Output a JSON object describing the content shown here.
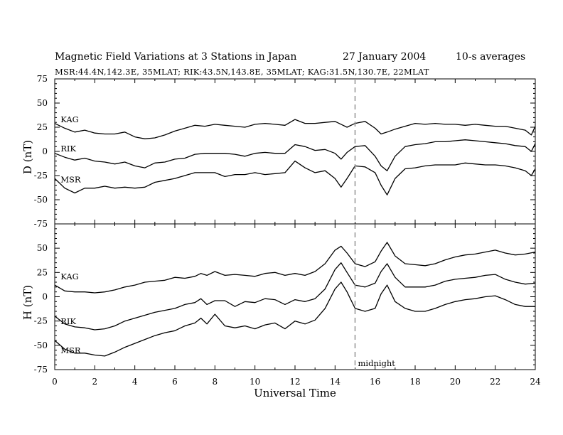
{
  "header": {
    "title": "Magnetic Field Variations at 3 Stations in Japan",
    "date": "27 January 2004",
    "averaging": "10-s averages",
    "stations_line": "MSR:44.4N,142.3E, 35MLAT;  RIK:43.5N,143.8E, 35MLAT;  KAG:31.5N,130.7E, 22MLAT"
  },
  "chart_data": [
    {
      "type": "line",
      "panel": "D",
      "ylabel": "D (nT)",
      "xlim": [
        0,
        24
      ],
      "ylim": [
        -75,
        75
      ],
      "yticks": [
        75,
        50,
        25,
        0,
        -25,
        -50,
        -75
      ],
      "series": [
        {
          "name": "KAG",
          "x": [
            0,
            0.5,
            1,
            1.5,
            2,
            2.5,
            3,
            3.5,
            4,
            4.5,
            5,
            5.5,
            6,
            6.5,
            7,
            7.5,
            8,
            8.5,
            9,
            9.5,
            10,
            10.5,
            11,
            11.5,
            12,
            12.5,
            13,
            13.5,
            14,
            14.3,
            14.6,
            15,
            15.5,
            16,
            16.3,
            16.6,
            17,
            17.5,
            18,
            18.5,
            19,
            19.5,
            20,
            20.5,
            21,
            21.5,
            22,
            22.5,
            23,
            23.5,
            23.8,
            24
          ],
          "y": [
            29,
            24,
            20,
            22,
            19,
            18,
            18,
            20,
            15,
            13,
            14,
            17,
            21,
            24,
            27,
            26,
            28,
            27,
            26,
            25,
            28,
            29,
            28,
            27,
            33,
            29,
            29,
            30,
            31,
            28,
            25,
            29,
            31,
            24,
            18,
            20,
            23,
            26,
            29,
            28,
            29,
            28,
            28,
            27,
            28,
            27,
            26,
            26,
            24,
            22,
            17,
            26
          ]
        },
        {
          "name": "RIK",
          "x": [
            0,
            0.5,
            1,
            1.5,
            2,
            2.5,
            3,
            3.5,
            4,
            4.5,
            5,
            5.5,
            6,
            6.5,
            7,
            7.5,
            8,
            8.5,
            9,
            9.5,
            10,
            10.5,
            11,
            11.5,
            12,
            12.5,
            13,
            13.5,
            14,
            14.3,
            14.6,
            15,
            15.5,
            16,
            16.3,
            16.6,
            17,
            17.5,
            18,
            18.5,
            19,
            19.5,
            20,
            20.5,
            21,
            21.5,
            22,
            22.5,
            23,
            23.5,
            23.8,
            24
          ],
          "y": [
            -2,
            -6,
            -9,
            -7,
            -10,
            -11,
            -13,
            -11,
            -15,
            -17,
            -12,
            -11,
            -8,
            -7,
            -3,
            -2,
            -2,
            -2,
            -3,
            -5,
            -2,
            -1,
            -2,
            -2,
            7,
            5,
            1,
            2,
            -2,
            -8,
            -1,
            5,
            6,
            -5,
            -15,
            -20,
            -5,
            5,
            7,
            8,
            10,
            10,
            11,
            12,
            11,
            10,
            9,
            8,
            6,
            5,
            0,
            8
          ]
        },
        {
          "name": "MSR",
          "x": [
            0,
            0.5,
            1,
            1.5,
            2,
            2.5,
            3,
            3.5,
            4,
            4.5,
            5,
            5.5,
            6,
            6.5,
            7,
            7.5,
            8,
            8.5,
            9,
            9.5,
            10,
            10.5,
            11,
            11.5,
            12,
            12.5,
            13,
            13.5,
            14,
            14.3,
            14.6,
            15,
            15.5,
            16,
            16.3,
            16.6,
            17,
            17.5,
            18,
            18.5,
            19,
            19.5,
            20,
            20.5,
            21,
            21.5,
            22,
            22.5,
            23,
            23.5,
            23.8,
            24
          ],
          "y": [
            -28,
            -38,
            -43,
            -38,
            -38,
            -36,
            -38,
            -37,
            -38,
            -37,
            -32,
            -30,
            -28,
            -25,
            -22,
            -22,
            -22,
            -26,
            -24,
            -24,
            -22,
            -24,
            -23,
            -22,
            -10,
            -17,
            -22,
            -20,
            -28,
            -37,
            -28,
            -15,
            -16,
            -22,
            -35,
            -45,
            -28,
            -18,
            -17,
            -15,
            -14,
            -14,
            -14,
            -12,
            -13,
            -14,
            -14,
            -15,
            -17,
            -20,
            -25,
            -18
          ]
        }
      ],
      "series_labels": [
        {
          "name": "KAG",
          "x": 0.15,
          "y": 30
        },
        {
          "name": "RIK",
          "x": 0.15,
          "y": 0
        },
        {
          "name": "MSR",
          "x": 0.15,
          "y": -32
        }
      ]
    },
    {
      "type": "line",
      "panel": "H",
      "ylabel": "H (nT)",
      "xlabel": "Universal Time",
      "xlim": [
        0,
        24
      ],
      "ylim": [
        -75,
        75
      ],
      "xticks": [
        0,
        2,
        4,
        6,
        8,
        10,
        12,
        14,
        16,
        18,
        20,
        22,
        24
      ],
      "yticks": [
        50,
        25,
        0,
        -25,
        -50,
        -75
      ],
      "series": [
        {
          "name": "KAG",
          "x": [
            0,
            0.5,
            1,
            1.5,
            2,
            2.5,
            3,
            3.5,
            4,
            4.5,
            5,
            5.5,
            6,
            6.5,
            7,
            7.3,
            7.6,
            8,
            8.5,
            9,
            9.5,
            10,
            10.5,
            11,
            11.5,
            12,
            12.5,
            13,
            13.5,
            14,
            14.3,
            14.6,
            15,
            15.5,
            16,
            16.3,
            16.6,
            17,
            17.5,
            18,
            18.5,
            19,
            19.5,
            20,
            20.5,
            21,
            21.5,
            22,
            22.5,
            23,
            23.5,
            24
          ],
          "y": [
            12,
            6,
            5,
            5,
            4,
            5,
            7,
            10,
            12,
            15,
            16,
            17,
            20,
            19,
            21,
            24,
            22,
            26,
            22,
            23,
            22,
            21,
            24,
            25,
            22,
            24,
            22,
            26,
            34,
            48,
            52,
            45,
            34,
            31,
            36,
            47,
            56,
            42,
            34,
            33,
            32,
            34,
            38,
            41,
            43,
            44,
            46,
            48,
            45,
            43,
            44,
            46
          ]
        },
        {
          "name": "RIK",
          "x": [
            0,
            0.5,
            1,
            1.5,
            2,
            2.5,
            3,
            3.5,
            4,
            4.5,
            5,
            5.5,
            6,
            6.5,
            7,
            7.3,
            7.6,
            8,
            8.5,
            9,
            9.5,
            10,
            10.5,
            11,
            11.5,
            12,
            12.5,
            13,
            13.5,
            14,
            14.3,
            14.6,
            15,
            15.5,
            16,
            16.3,
            16.6,
            17,
            17.5,
            18,
            18.5,
            19,
            19.5,
            20,
            20.5,
            21,
            21.5,
            22,
            22.5,
            23,
            23.5,
            24
          ],
          "y": [
            -20,
            -28,
            -31,
            -32,
            -34,
            -33,
            -30,
            -25,
            -22,
            -19,
            -16,
            -14,
            -12,
            -8,
            -6,
            -2,
            -8,
            -4,
            -4,
            -10,
            -5,
            -6,
            -2,
            -3,
            -8,
            -3,
            -5,
            -2,
            8,
            28,
            35,
            25,
            12,
            10,
            14,
            26,
            34,
            20,
            10,
            10,
            10,
            12,
            16,
            18,
            19,
            20,
            22,
            23,
            18,
            15,
            13,
            14
          ]
        },
        {
          "name": "MSR",
          "x": [
            0,
            0.5,
            1,
            1.5,
            2,
            2.5,
            3,
            3.5,
            4,
            4.5,
            5,
            5.5,
            6,
            6.5,
            7,
            7.3,
            7.6,
            8,
            8.5,
            9,
            9.5,
            10,
            10.5,
            11,
            11.5,
            12,
            12.5,
            13,
            13.5,
            14,
            14.3,
            14.6,
            15,
            15.5,
            16,
            16.3,
            16.6,
            17,
            17.5,
            18,
            18.5,
            19,
            19.5,
            20,
            20.5,
            21,
            21.5,
            22,
            22.5,
            23,
            23.5,
            24
          ],
          "y": [
            -45,
            -54,
            -58,
            -58,
            -60,
            -61,
            -57,
            -52,
            -48,
            -44,
            -40,
            -37,
            -35,
            -30,
            -27,
            -22,
            -28,
            -18,
            -30,
            -32,
            -30,
            -33,
            -29,
            -27,
            -33,
            -25,
            -28,
            -24,
            -12,
            8,
            15,
            5,
            -12,
            -15,
            -12,
            3,
            12,
            -5,
            -12,
            -15,
            -15,
            -12,
            -8,
            -5,
            -3,
            -2,
            0,
            1,
            -3,
            -8,
            -10,
            -10
          ]
        }
      ],
      "series_labels": [
        {
          "name": "KAG",
          "x": 0.15,
          "y": 18
        },
        {
          "name": "RIK",
          "x": 0.15,
          "y": -28
        },
        {
          "name": "MSR",
          "x": 0.15,
          "y": -58
        }
      ],
      "annotations": [
        {
          "text": "midnight",
          "x": 15,
          "marker": "dashed-vertical-line"
        }
      ]
    }
  ]
}
